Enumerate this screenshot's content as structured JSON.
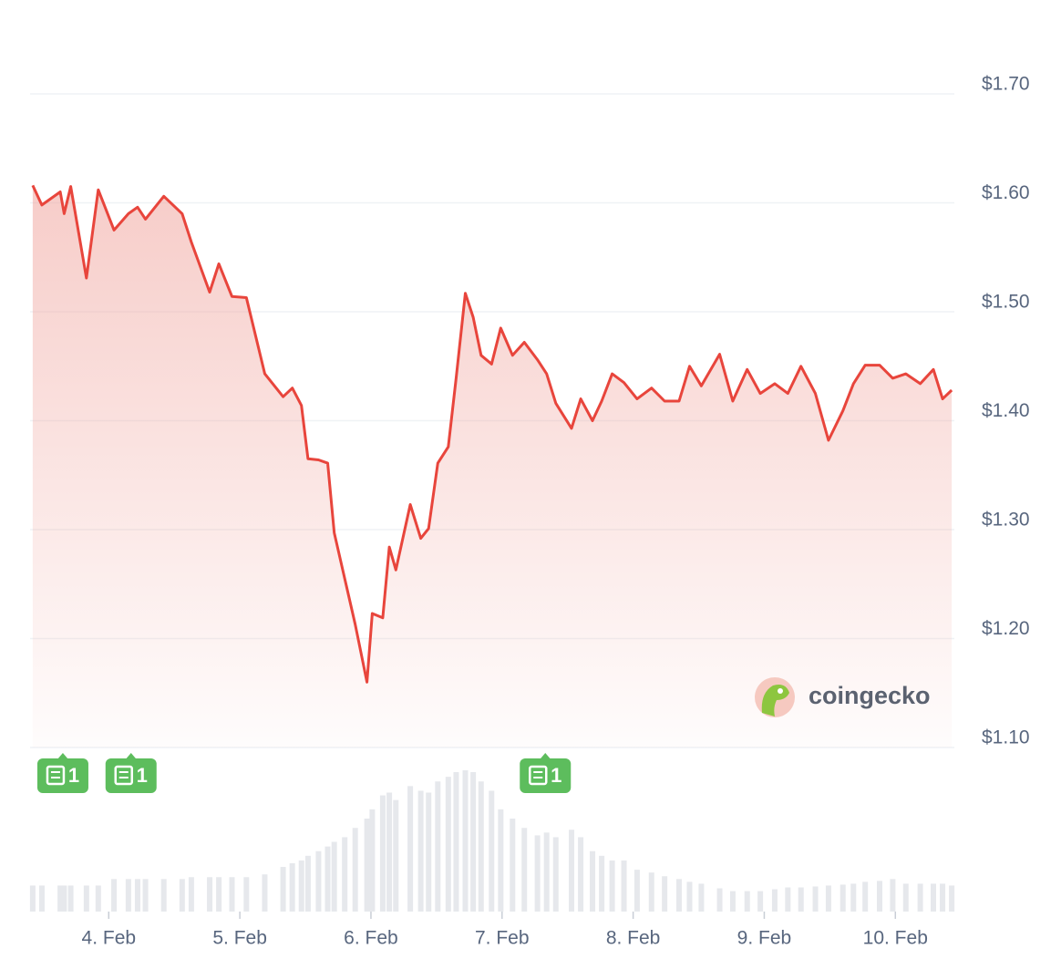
{
  "chart_data": {
    "type": "line",
    "color": "#e8453c",
    "volume_color": "#e6e8ec",
    "grid": true,
    "x": [
      3.42,
      3.49,
      3.63,
      3.66,
      3.71,
      3.83,
      3.92,
      4.04,
      4.15,
      4.22,
      4.28,
      4.42,
      4.56,
      4.63,
      4.77,
      4.84,
      4.94,
      5.05,
      5.19,
      5.33,
      5.4,
      5.47,
      5.52,
      5.6,
      5.67,
      5.72,
      5.8,
      5.88,
      5.97,
      6.01,
      6.09,
      6.14,
      6.19,
      6.3,
      6.38,
      6.44,
      6.51,
      6.59,
      6.65,
      6.72,
      6.78,
      6.84,
      6.92,
      6.99,
      7.08,
      7.17,
      7.27,
      7.34,
      7.41,
      7.53,
      7.6,
      7.69,
      7.76,
      7.84,
      7.93,
      8.03,
      8.14,
      8.24,
      8.35,
      8.43,
      8.52,
      8.66,
      8.76,
      8.87,
      8.97,
      9.08,
      9.18,
      9.28,
      9.39,
      9.49,
      9.6,
      9.68,
      9.77,
      9.88,
      9.98,
      10.08,
      10.19,
      10.29,
      10.36,
      10.43
    ],
    "values": [
      1.616,
      1.598,
      1.61,
      1.59,
      1.615,
      1.531,
      1.612,
      1.575,
      1.59,
      1.596,
      1.585,
      1.606,
      1.59,
      1.564,
      1.518,
      1.544,
      1.514,
      1.513,
      1.443,
      1.422,
      1.43,
      1.414,
      1.365,
      1.364,
      1.361,
      1.297,
      1.255,
      1.213,
      1.16,
      1.223,
      1.219,
      1.284,
      1.263,
      1.323,
      1.292,
      1.301,
      1.361,
      1.376,
      1.439,
      1.517,
      1.495,
      1.46,
      1.452,
      1.485,
      1.46,
      1.472,
      1.456,
      1.443,
      1.416,
      1.393,
      1.42,
      1.4,
      1.418,
      1.443,
      1.435,
      1.42,
      1.43,
      1.418,
      1.418,
      1.45,
      1.432,
      1.461,
      1.418,
      1.447,
      1.425,
      1.434,
      1.425,
      1.45,
      1.425,
      1.382,
      1.409,
      1.434,
      1.451,
      1.451,
      1.439,
      1.443,
      1.434,
      1.447,
      1.42,
      1.428
    ],
    "volume": [
      28,
      28,
      28,
      28,
      28,
      28,
      28,
      35,
      35,
      35,
      35,
      35,
      35,
      37,
      37,
      37,
      37,
      37,
      40,
      48,
      52,
      55,
      60,
      65,
      70,
      75,
      80,
      90,
      100,
      110,
      125,
      128,
      120,
      135,
      130,
      128,
      140,
      145,
      150,
      152,
      150,
      140,
      130,
      110,
      100,
      90,
      82,
      85,
      80,
      88,
      80,
      65,
      60,
      55,
      55,
      45,
      42,
      38,
      35,
      32,
      30,
      25,
      22,
      22,
      22,
      24,
      26,
      26,
      27,
      28,
      29,
      30,
      32,
      33,
      35,
      30,
      30,
      30,
      30,
      28
    ],
    "xlim": [
      3.4,
      10.45
    ],
    "ylim": [
      1.1,
      1.7
    ],
    "yticks": [
      {
        "value": 1.1,
        "label": "$1.10"
      },
      {
        "value": 1.2,
        "label": "$1.20"
      },
      {
        "value": 1.3,
        "label": "$1.30"
      },
      {
        "value": 1.4,
        "label": "$1.40"
      },
      {
        "value": 1.5,
        "label": "$1.50"
      },
      {
        "value": 1.6,
        "label": "$1.60"
      },
      {
        "value": 1.7,
        "label": "$1.70"
      }
    ],
    "xticks": [
      {
        "value": 4,
        "label": "4. Feb"
      },
      {
        "value": 5,
        "label": "5. Feb"
      },
      {
        "value": 6,
        "label": "6. Feb"
      },
      {
        "value": 7,
        "label": "7. Feb"
      },
      {
        "value": 8,
        "label": "8. Feb"
      },
      {
        "value": 9,
        "label": "9. Feb"
      },
      {
        "value": 10,
        "label": "10. Feb"
      }
    ],
    "news": [
      {
        "x": 3.65,
        "count": 1
      },
      {
        "x": 4.17,
        "count": 1
      },
      {
        "x": 7.33,
        "count": 1
      }
    ],
    "watermark": "coingecko"
  }
}
